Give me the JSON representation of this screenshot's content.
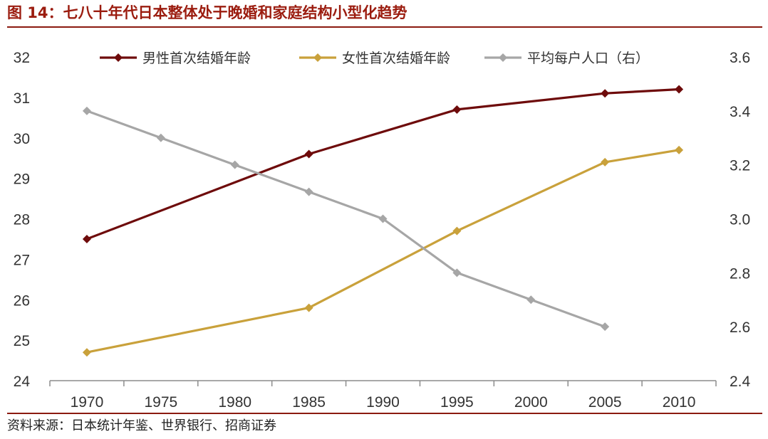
{
  "title": "图 14：七八十年代日本整体处于晚婚和家庭结构小型化趋势",
  "source": "资料来源：日本统计年鉴、世界银行、招商证券",
  "chart_data": {
    "type": "line",
    "categories": [
      "1970",
      "1975",
      "1980",
      "1985",
      "1990",
      "1995",
      "2000",
      "2005",
      "2010"
    ],
    "y_left": {
      "ylim": [
        24,
        32
      ],
      "ticks": [
        "24",
        "25",
        "26",
        "27",
        "28",
        "29",
        "30",
        "31",
        "32"
      ]
    },
    "y_right": {
      "ylim": [
        2.4,
        3.6
      ],
      "ticks": [
        "2.4",
        "2.6",
        "2.8",
        "3.0",
        "3.2",
        "3.4",
        "3.6"
      ]
    },
    "grid": false,
    "legend": "top",
    "series": [
      {
        "name": "男性首次结婚年龄",
        "axis": "left",
        "color": "#6e0b0b",
        "points": [
          [
            1970,
            27.5
          ],
          [
            1985,
            29.6
          ],
          [
            1995,
            30.7
          ],
          [
            2005,
            31.1
          ],
          [
            2010,
            31.2
          ]
        ]
      },
      {
        "name": "女性首次结婚年龄",
        "axis": "left",
        "color": "#c9a13b",
        "points": [
          [
            1970,
            24.7
          ],
          [
            1985,
            25.8
          ],
          [
            1995,
            27.7
          ],
          [
            2005,
            29.4
          ],
          [
            2010,
            29.7
          ]
        ]
      },
      {
        "name": "平均每户人口（右）",
        "axis": "right",
        "color": "#a6a6a6",
        "points": [
          [
            1970,
            3.4
          ],
          [
            1975,
            3.3
          ],
          [
            1980,
            3.2
          ],
          [
            1985,
            3.1
          ],
          [
            1990,
            3.0
          ],
          [
            1995,
            2.8
          ],
          [
            2000,
            2.7
          ],
          [
            2005,
            2.6
          ]
        ]
      }
    ]
  }
}
